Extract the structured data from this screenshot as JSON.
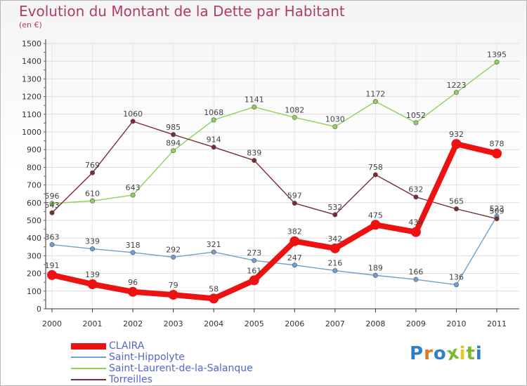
{
  "title": "Evolution du Montant de la Dette par Habitant",
  "unit": "(en €)",
  "brand": {
    "text": "Proxiti",
    "colors": [
      "#2f7fc4",
      "#e07a1f",
      "#2f7fc4",
      "#7cb832",
      "#e4c52a",
      "#7cb832",
      "#2f7fc4"
    ]
  },
  "chart_data": {
    "type": "line",
    "x": [
      "2000",
      "2001",
      "2002",
      "2003",
      "2004",
      "2005",
      "2006",
      "2007",
      "2008",
      "2009",
      "2010",
      "2011"
    ],
    "ylim": [
      0,
      1500
    ],
    "yticks": [
      0,
      100,
      200,
      300,
      400,
      500,
      600,
      700,
      800,
      900,
      1000,
      1100,
      1200,
      1300,
      1400,
      1500
    ],
    "grid": true,
    "legend_position": "bottom-left",
    "series": [
      {
        "name": "CLAIRA",
        "color": "#ee1111",
        "width": "thick",
        "values": [
          191,
          139,
          96,
          79,
          58,
          161,
          382,
          342,
          475,
          434,
          932,
          878
        ]
      },
      {
        "name": "Saint-Hippolyte",
        "color": "#6f9fcf",
        "width": "thin",
        "values": [
          363,
          339,
          318,
          292,
          321,
          273,
          247,
          216,
          189,
          166,
          136,
          523
        ]
      },
      {
        "name": "Saint-Laurent-de-la-Salanque",
        "color": "#8fd05a",
        "width": "thin",
        "values": [
          596,
          610,
          643,
          894,
          1068,
          1141,
          1082,
          1030,
          1172,
          1052,
          1223,
          1395
        ]
      },
      {
        "name": "Torreilles",
        "color": "#7a2a32",
        "width": "thin",
        "values": [
          543,
          769,
          1060,
          985,
          914,
          839,
          597,
          532,
          758,
          632,
          565,
          509
        ]
      }
    ]
  }
}
